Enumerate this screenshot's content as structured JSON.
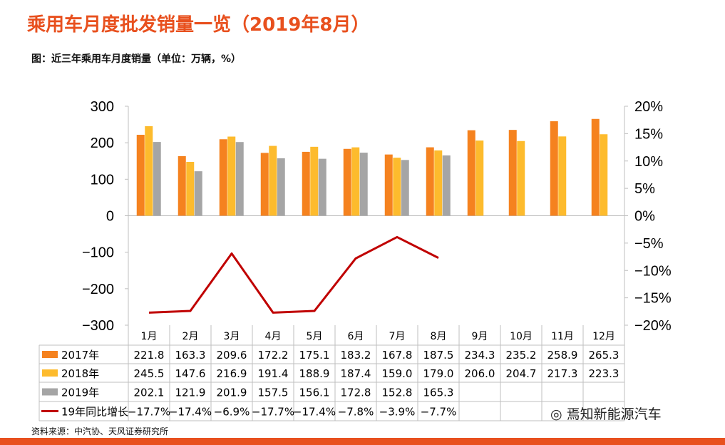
{
  "title": "乘用车月度批发销量一览（2019年8月）",
  "subtitle": "图：近三年乘用车月度销量（单位：万辆，%）",
  "source": "资料来源：中汽协、天风证券研究所",
  "watermark": "焉知新能源汽车",
  "chart_data": {
    "type": "bar",
    "categories": [
      "1月",
      "2月",
      "3月",
      "4月",
      "5月",
      "6月",
      "7月",
      "8月",
      "9月",
      "10月",
      "11月",
      "12月"
    ],
    "series": [
      {
        "name": "2017年",
        "type": "bar",
        "axis": "left",
        "color": "#f5821f",
        "values": [
          221.8,
          163.3,
          209.6,
          172.2,
          175.1,
          183.2,
          167.8,
          187.5,
          234.3,
          235.2,
          258.9,
          265.3
        ]
      },
      {
        "name": "2018年",
        "type": "bar",
        "axis": "left",
        "color": "#fdbb2d",
        "values": [
          245.5,
          147.6,
          216.9,
          191.4,
          188.9,
          187.4,
          159.0,
          179.0,
          206.0,
          204.7,
          217.3,
          223.3
        ]
      },
      {
        "name": "2019年",
        "type": "bar",
        "axis": "left",
        "color": "#a5a5a5",
        "values": [
          202.1,
          121.9,
          201.9,
          157.5,
          156.1,
          172.8,
          152.8,
          165.3,
          null,
          null,
          null,
          null
        ]
      },
      {
        "name": "19年同比增长",
        "type": "line",
        "axis": "right",
        "color": "#c00000",
        "values": [
          -17.7,
          -17.4,
          -6.9,
          -17.7,
          -17.4,
          -7.8,
          -3.9,
          -7.7,
          null,
          null,
          null,
          null
        ]
      }
    ],
    "table_rows": [
      [
        "221.8",
        "163.3",
        "209.6",
        "172.2",
        "175.1",
        "183.2",
        "167.8",
        "187.5",
        "234.3",
        "235.2",
        "258.9",
        "265.3"
      ],
      [
        "245.5",
        "147.6",
        "216.9",
        "191.4",
        "188.9",
        "187.4",
        "159.0",
        "179.0",
        "206.0",
        "204.7",
        "217.3",
        "223.3"
      ],
      [
        "202.1",
        "121.9",
        "201.9",
        "157.5",
        "156.1",
        "172.8",
        "152.8",
        "165.3",
        "",
        "",
        "",
        ""
      ],
      [
        "−17.7%",
        "−17.4%",
        "−6.9%",
        "−17.7%",
        "−17.4%",
        "−7.8%",
        "−3.9%",
        "−7.7%",
        "",
        "",
        "",
        ""
      ]
    ],
    "y_left": {
      "ylim": [
        -300,
        300
      ],
      "ticks": [
        "300",
        "200",
        "100",
        "0",
        "−100",
        "−200",
        "−300"
      ],
      "tick_values": [
        300,
        200,
        100,
        0,
        -100,
        -200,
        -300
      ]
    },
    "y_right": {
      "ylim": [
        -20,
        20
      ],
      "ticks": [
        "20%",
        "15%",
        "10%",
        "5%",
        "0%",
        "−5%",
        "−10%",
        "−15%",
        "−20%"
      ],
      "tick_values": [
        20,
        15,
        10,
        5,
        0,
        -5,
        -10,
        -15,
        -20
      ]
    },
    "grid": false,
    "legend_position": "data-table"
  }
}
